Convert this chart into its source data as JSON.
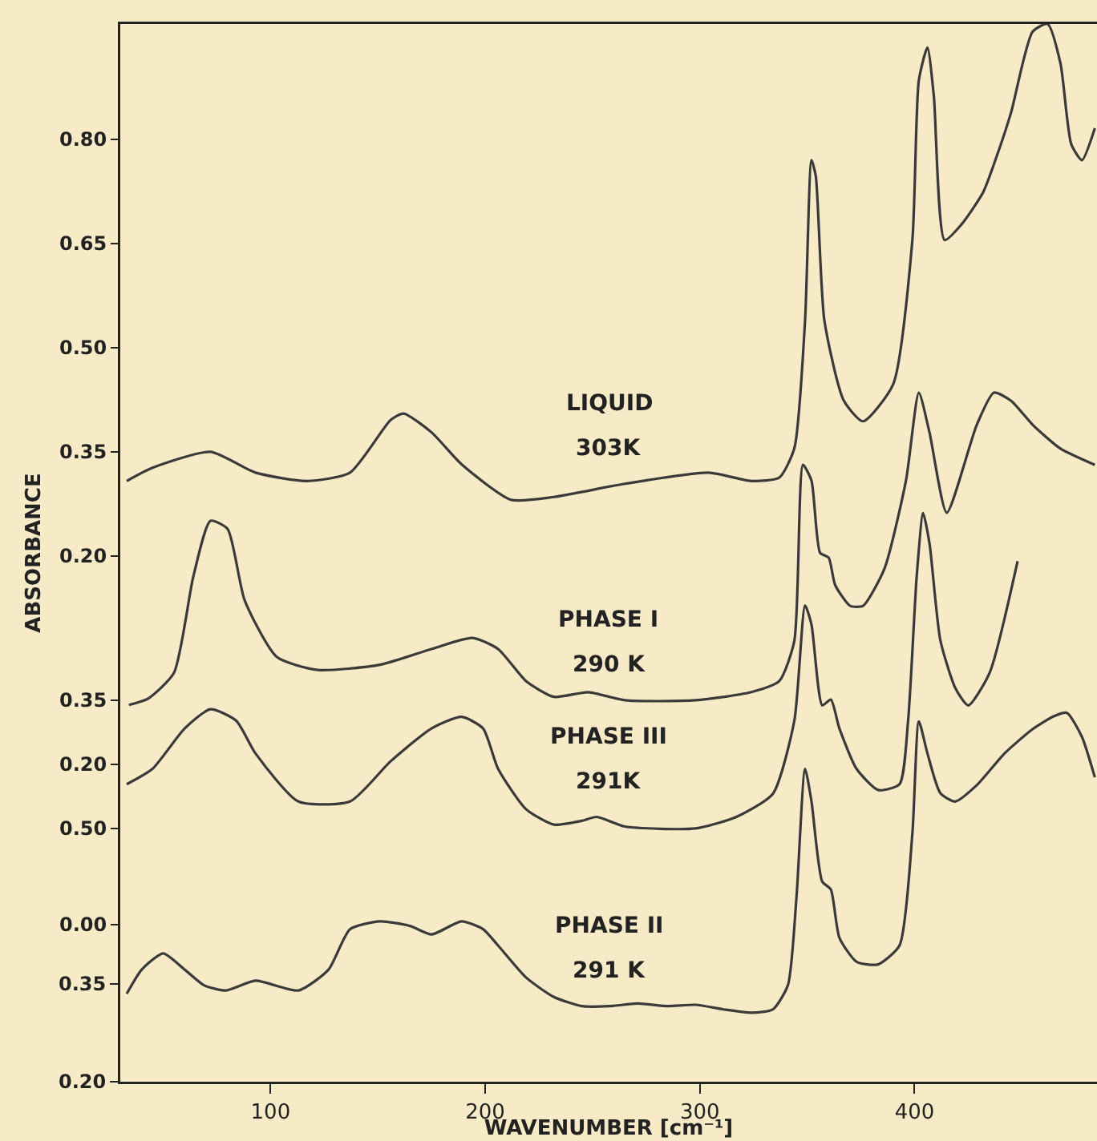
{
  "chart_data": [
    {
      "type": "line",
      "ylabel": "ABSORBANCE",
      "xlim": [
        30,
        485
      ],
      "xticks": [
        100,
        200,
        300,
        400
      ],
      "tick_labels": "y",
      "ylim": [
        -0.557,
        0.966
      ],
      "yticks": [
        {
          "value": 0.2,
          "label": "0.20"
        },
        {
          "value": 0.35,
          "label": "0.35"
        },
        {
          "value": 0.5,
          "label": "0.50"
        },
        {
          "value": 0.65,
          "label": "0.65"
        },
        {
          "value": 0.8,
          "label": "0.80"
        }
      ],
      "annotations": [
        "LIQUID",
        "303K"
      ],
      "series": [
        {
          "color": "#3a3a3a",
          "x": [
            33,
            45,
            72,
            93,
            117,
            137,
            156,
            162,
            175,
            189,
            212,
            232,
            265,
            304,
            324,
            337,
            344,
            349,
            352,
            354,
            358,
            367,
            376,
            390,
            399,
            402,
            406,
            409,
            414,
            422,
            432,
            439,
            445,
            455,
            462,
            468,
            473,
            478,
            484
          ],
          "values": [
            0.308,
            0.327,
            0.35,
            0.32,
            0.308,
            0.32,
            0.396,
            0.405,
            0.378,
            0.332,
            0.281,
            0.285,
            0.304,
            0.32,
            0.308,
            0.313,
            0.355,
            0.539,
            0.77,
            0.747,
            0.539,
            0.424,
            0.394,
            0.447,
            0.655,
            0.885,
            0.932,
            0.862,
            0.655,
            0.678,
            0.724,
            0.782,
            0.839,
            0.955,
            0.966,
            0.909,
            0.793,
            0.77,
            0.816
          ]
        }
      ]
    },
    {
      "type": "line",
      "xlim": [
        30,
        485
      ],
      "xticks": [
        100,
        200,
        300,
        400
      ],
      "tick_labels": "y",
      "ylim": [
        -0.543,
        1.933
      ],
      "yticks": [
        {
          "value": 0.2,
          "label": "0.20"
        },
        {
          "value": 0.35,
          "label": "0.35"
        }
      ],
      "annotations": [
        "PHASE I",
        "290 K"
      ],
      "series": [
        {
          "color": "#3a3a3a",
          "x": [
            34,
            43,
            55,
            64,
            72,
            80,
            88,
            103,
            122,
            151,
            175,
            194,
            206,
            219,
            232,
            248,
            265,
            298,
            324,
            337,
            344,
            348,
            352,
            356,
            360,
            363,
            370,
            376,
            386,
            396,
            402,
            407,
            415,
            429,
            437,
            445,
            455,
            468,
            484
          ],
          "values": [
            0.339,
            0.354,
            0.414,
            0.639,
            0.77,
            0.751,
            0.583,
            0.451,
            0.421,
            0.433,
            0.47,
            0.496,
            0.47,
            0.395,
            0.358,
            0.369,
            0.35,
            0.35,
            0.369,
            0.395,
            0.489,
            0.901,
            0.864,
            0.695,
            0.684,
            0.62,
            0.571,
            0.571,
            0.658,
            0.864,
            1.07,
            0.976,
            0.789,
            0.995,
            1.07,
            1.051,
            0.995,
            0.939,
            0.901
          ]
        }
      ]
    },
    {
      "type": "line",
      "xlim": [
        30,
        485
      ],
      "xticks": [
        100,
        200,
        300,
        400
      ],
      "tick_labels": "y",
      "ylim": [
        -0.817,
        4.683
      ],
      "yticks": [
        {
          "value": 0,
          "label": "0.00"
        },
        {
          "value": 0.5,
          "label": "0.50"
        }
      ],
      "annotations": [
        "PHASE III",
        "291K"
      ],
      "series": [
        {
          "color": "#3a3a3a",
          "x": [
            33,
            45,
            60,
            72,
            84,
            93,
            113,
            137,
            156,
            175,
            189,
            199,
            206,
            219,
            232,
            245,
            252,
            265,
            298,
            317,
            334,
            344,
            349,
            352,
            357,
            361,
            365,
            373,
            383,
            393,
            397,
            401,
            404,
            407,
            412,
            419,
            425,
            435,
            448
          ],
          "values": [
            0.73,
            0.81,
            1.02,
            1.12,
            1.06,
            0.89,
            0.64,
            0.64,
            0.85,
            1.02,
            1.08,
            1.02,
            0.81,
            0.6,
            0.52,
            0.54,
            0.56,
            0.51,
            0.5,
            0.56,
            0.68,
            1.06,
            1.66,
            1.56,
            1.14,
            1.17,
            1.02,
            0.81,
            0.7,
            0.73,
            1.06,
            1.81,
            2.14,
            1.98,
            1.48,
            1.23,
            1.14,
            1.31,
            1.89
          ]
        }
      ]
    },
    {
      "type": "line",
      "xlabel": "WAVENUMBER [cm⁻¹]",
      "xlim": [
        30,
        485
      ],
      "xticks": [
        100,
        200,
        300,
        400
      ],
      "ylim": [
        0.2,
        1.823
      ],
      "yticks": [
        {
          "value": 0.2,
          "label": "0.20"
        },
        {
          "value": 0.35,
          "label": "0.35"
        }
      ],
      "annotations": [
        "PHASE II",
        "291 K"
      ],
      "series": [
        {
          "color": "#3a3a3a",
          "x": [
            33,
            40,
            50,
            60,
            69,
            79,
            93,
            113,
            127,
            137,
            151,
            165,
            175,
            189,
            199,
            206,
            219,
            232,
            245,
            258,
            271,
            285,
            298,
            311,
            324,
            334,
            341,
            345,
            349,
            352,
            357,
            361,
            365,
            373,
            383,
            393,
            399,
            402,
            406,
            412,
            419,
            429,
            442,
            455,
            465,
            471,
            478,
            484
          ],
          "values": [
            0.335,
            0.372,
            0.397,
            0.372,
            0.348,
            0.34,
            0.355,
            0.34,
            0.372,
            0.434,
            0.446,
            0.439,
            0.426,
            0.446,
            0.434,
            0.409,
            0.36,
            0.33,
            0.316,
            0.316,
            0.32,
            0.316,
            0.318,
            0.311,
            0.306,
            0.311,
            0.348,
            0.483,
            0.68,
            0.63,
            0.507,
            0.495,
            0.421,
            0.384,
            0.38,
            0.409,
            0.581,
            0.753,
            0.704,
            0.643,
            0.63,
            0.655,
            0.704,
            0.741,
            0.761,
            0.766,
            0.729,
            0.667
          ]
        }
      ]
    }
  ]
}
